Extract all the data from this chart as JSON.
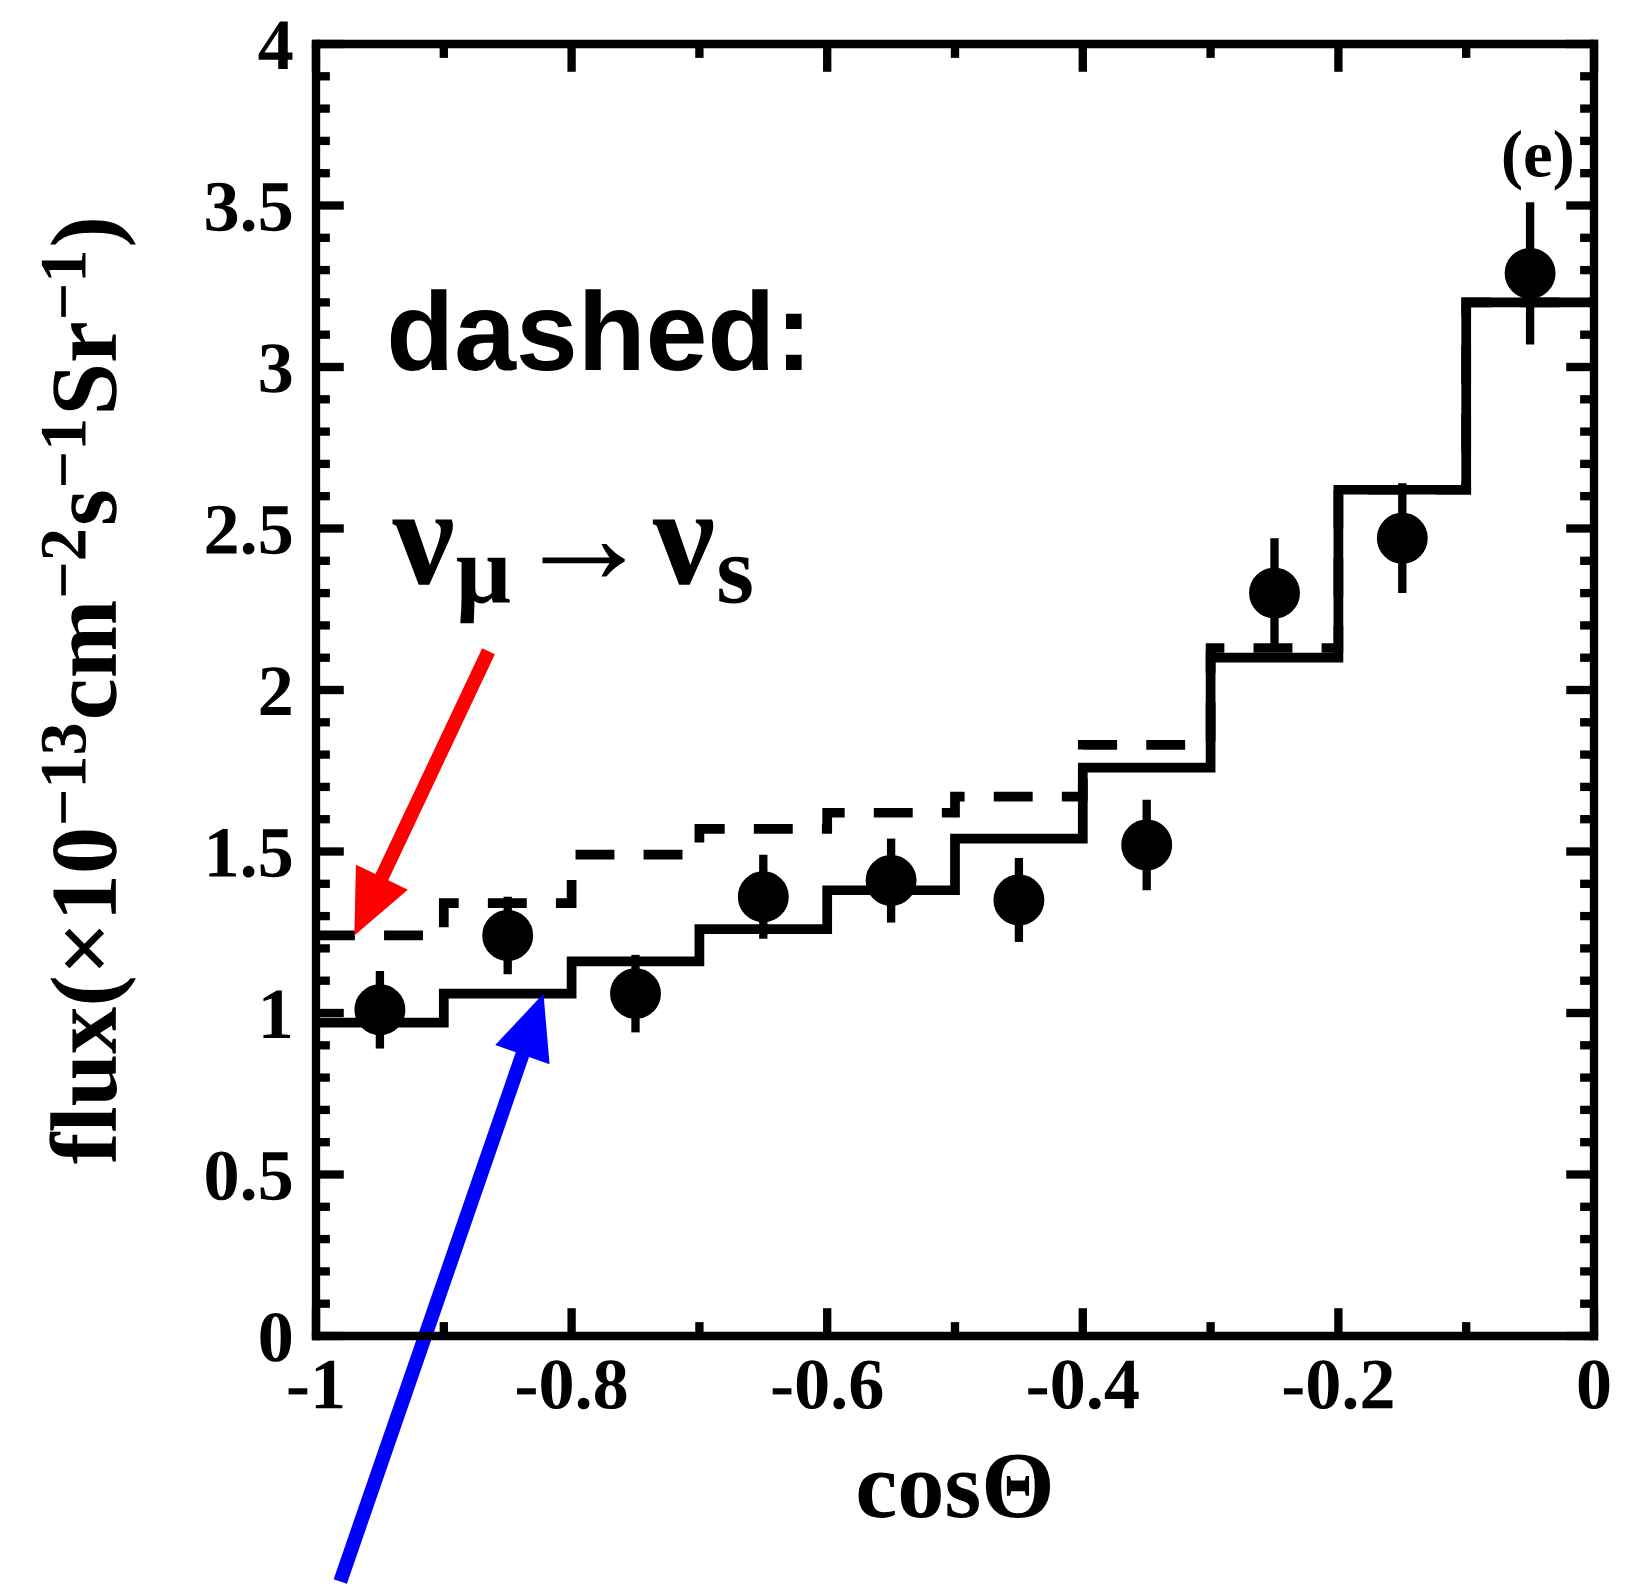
{
  "chart_data": {
    "type": "histogram",
    "xlabel": "cosΘ",
    "ylabel": "flux(×10$^{−13}$cm$^{−2}$s$^{−1}$Sr$^{−1}$)",
    "annotations": [
      "(e)",
      "dashed:",
      {
        "text": "ν$_{μ}$→ν$_{s}$",
        "x": -0.97,
        "y": 1.24
      }
    ],
    "bins": [
      -1,
      -0.9,
      -0.8,
      -0.7,
      -0.6,
      -0.5,
      -0.4,
      -0.3,
      -0.2,
      -0.1,
      0
    ],
    "series": [
      {
        "color": "#000000",
        "line_style": "solid",
        "values": [
          0.97,
          1.06,
          1.16,
          1.26,
          1.38,
          1.54,
          1.76,
          2.1,
          2.62,
          3.2
        ]
      },
      {
        "color": "#000000",
        "line_style": "dashed",
        "values": [
          1.24,
          1.34,
          1.49,
          1.57,
          1.62,
          1.67,
          1.83,
          2.13,
          2.62,
          3.2
        ]
      },
      {
        "type": "scatter",
        "color": "#000000",
        "marker": "circle",
        "x": [
          -0.95,
          -0.85,
          -0.75,
          -0.65,
          -0.55,
          -0.45,
          -0.35,
          -0.25,
          -0.15,
          -0.05
        ],
        "values": [
          1.01,
          1.24,
          1.06,
          1.36,
          1.41,
          1.35,
          1.52,
          2.3,
          2.47,
          3.29
        ],
        "errors": [
          0.12,
          0.12,
          0.12,
          0.13,
          0.13,
          0.13,
          0.14,
          0.17,
          0.17,
          0.22
        ]
      }
    ],
    "xlim": [
      -1,
      0
    ],
    "xticks": [
      -1,
      -0.8,
      -0.6,
      -0.4,
      -0.2,
      0
    ],
    "ylim": [
      0,
      4
    ],
    "yticks": [
      0,
      0.5,
      1,
      1.5,
      2,
      2.5,
      3,
      3.5,
      4
    ],
    "grid": false,
    "legend": false
  }
}
